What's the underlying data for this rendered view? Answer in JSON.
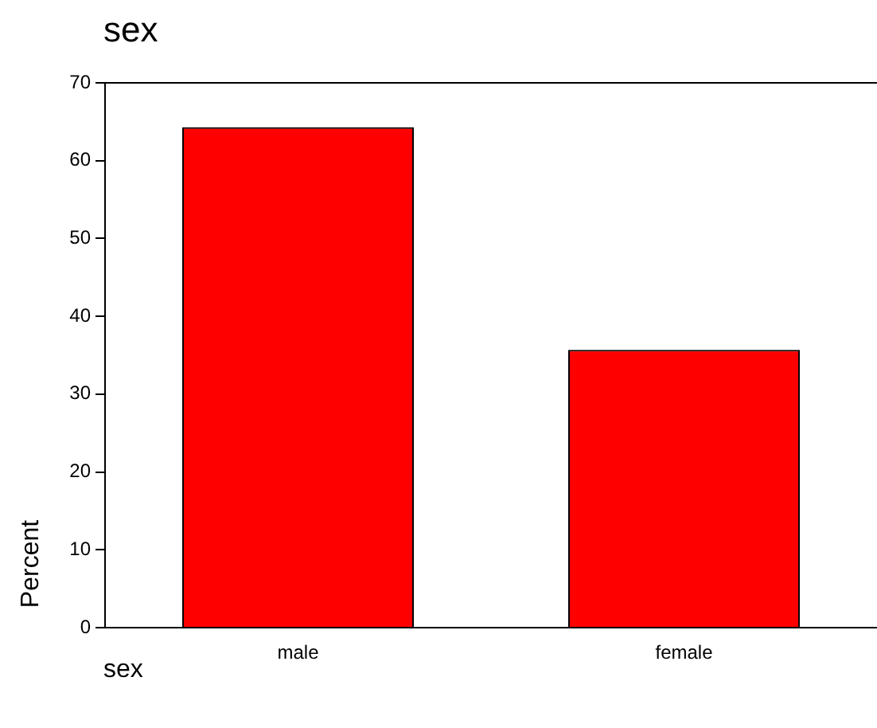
{
  "chart_data": {
    "type": "bar",
    "title": "sex",
    "xlabel": "sex",
    "ylabel": "Percent",
    "categories": [
      "male",
      "female"
    ],
    "values": [
      64.3,
      35.7
    ],
    "color": "#ff0000",
    "ylim": [
      0,
      70
    ],
    "yticks": [
      0,
      10,
      20,
      30,
      40,
      50,
      60,
      70
    ],
    "legend": false,
    "grid": false
  }
}
